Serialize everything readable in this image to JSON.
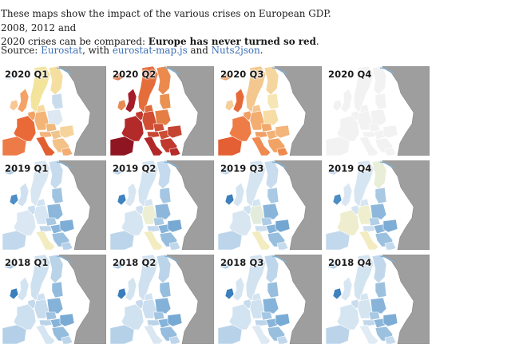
{
  "intro": {
    "line1": "These maps show the impact of the various crises on European GDP. 2008, 2012 and",
    "line2": "2020 crises can be compared: ",
    "bold": "Europe has never turned so red",
    "end": "."
  },
  "source": {
    "label": "Source: ",
    "link1": "Eurostat",
    "sep1": ", with ",
    "link2": "eurostat-map.js",
    "sep2": " and ",
    "link3": "Nuts2json",
    "end": "."
  },
  "colors": {
    "background_land": "#9e9e9e",
    "background_land_stroke": "#7a7a7a",
    "sea": "#ffffff",
    "coast_blue": "#7fb3da",
    "no_data": "#f2f2f2"
  },
  "maps": [
    {
      "label": "2020 Q1",
      "icon": "europe-choropleth-map",
      "fills": {
        "scandi": "#f2e49b",
        "finland": "#f5dfa0",
        "iceland": "#e8f1f8",
        "uk": "#f4a266",
        "ireland": "#f8c792",
        "france": "#e96a38",
        "iberia": "#ec7b47",
        "italy": "#e25f30",
        "benelux": "#f1a265",
        "germany": "#f3b477",
        "poland": "#dde8f3",
        "baltics": "#c9dced",
        "czech": "#f1b87d",
        "balkans": "#f4c187",
        "romania": "#f5d39a",
        "greece": "#f2ad72",
        "austria": "#f4b37a",
        "hungary": "#eec58f",
        "denmark": "#f6d9a1"
      }
    },
    {
      "label": "2020 Q2",
      "icon": "europe-choropleth-map",
      "fills": {
        "scandi": "#e56d3a",
        "finland": "#ec8a4d",
        "iceland": "#e07540",
        "uk": "#a51d2b",
        "ireland": "#e88a52",
        "france": "#b32a2a",
        "iberia": "#8f1523",
        "italy": "#b22727",
        "benelux": "#c23a2e",
        "germany": "#d04e34",
        "poland": "#e47e45",
        "baltics": "#ea9251",
        "czech": "#cf4f36",
        "balkans": "#c1382f",
        "romania": "#c64432",
        "greece": "#b52c2b",
        "austria": "#c84632",
        "hungary": "#cd4d35",
        "denmark": "#e06b3d"
      }
    },
    {
      "label": "2020 Q3",
      "icon": "europe-choropleth-map",
      "fills": {
        "scandi": "#f3c78e",
        "finland": "#f6d69f",
        "iceland": "#f09f62",
        "uk": "#e66a39",
        "ireland": "#f4cf99",
        "france": "#ee7c46",
        "iberia": "#e45f33",
        "italy": "#ef8a50",
        "benelux": "#f29e62",
        "germany": "#f3ad70",
        "poland": "#f7dca6",
        "baltics": "#f6e6b6",
        "czech": "#f2a96c",
        "balkans": "#f1a366",
        "romania": "#f3b57a",
        "greece": "#ee8a4e",
        "austria": "#f0a064",
        "hungary": "#f2b276",
        "denmark": "#f5c690"
      }
    },
    {
      "label": "2020 Q4",
      "icon": "europe-choropleth-map",
      "fills": {
        "scandi": "#f2f2f2",
        "finland": "#f2f2f2",
        "iceland": "#f2f2f2",
        "uk": "#f2f2f2",
        "ireland": "#f2f2f2",
        "france": "#f2f2f2",
        "iberia": "#f2f2f2",
        "italy": "#f2f2f2",
        "benelux": "#f2f2f2",
        "germany": "#f2f2f2",
        "poland": "#f2f2f2",
        "baltics": "#f2f2f2",
        "czech": "#f2f2f2",
        "balkans": "#f2f2f2",
        "romania": "#f2f2f2",
        "greece": "#f2f2f2",
        "austria": "#f2f2f2",
        "hungary": "#f2f2f2",
        "denmark": "#f2f2f2"
      }
    },
    {
      "label": "2019 Q1",
      "icon": "europe-choropleth-map",
      "fills": {
        "scandi": "#d8e6f2",
        "finland": "#c6dbee",
        "iceland": "#a9c9e4",
        "uk": "#cfe1f0",
        "ireland": "#4d8fc6",
        "france": "#dbe8f3",
        "iberia": "#c2d8ec",
        "italy": "#f2ecc0",
        "benelux": "#cadef0",
        "germany": "#d7e6f2",
        "poland": "#8cb7db",
        "baltics": "#9fc4e1",
        "czech": "#a8c9e4",
        "balkans": "#9bc0df",
        "romania": "#7eadd5",
        "greece": "#b6d1e9",
        "austria": "#c0d7eb",
        "hungary": "#88b5da",
        "denmark": "#d1e3f1"
      }
    },
    {
      "label": "2019 Q2",
      "icon": "europe-choropleth-map",
      "fills": {
        "scandi": "#d2e3f1",
        "finland": "#c5daee",
        "iceland": "#b4cfe8",
        "uk": "#d8e6f2",
        "ireland": "#3e82bf",
        "france": "#d6e5f2",
        "iberia": "#bcd5ea",
        "italy": "#f2ecc0",
        "benelux": "#cfe1f0",
        "germany": "#ecefd4",
        "poland": "#8cb7db",
        "baltics": "#a4c6e2",
        "czech": "#abcbe5",
        "balkans": "#96bddd",
        "romania": "#78a9d3",
        "greece": "#c0d7eb",
        "austria": "#c5daee",
        "hungary": "#86b3d9",
        "denmark": "#d5e5f2"
      }
    },
    {
      "label": "2019 Q3",
      "icon": "europe-choropleth-map",
      "fills": {
        "scandi": "#d4e4f1",
        "finland": "#c8dcee",
        "iceland": "#bcd5ea",
        "uk": "#d4e4f1",
        "ireland": "#3d80bd",
        "france": "#d8e6f2",
        "iberia": "#bdd5ea",
        "italy": "#f2ecc0",
        "benelux": "#d0e2f0",
        "germany": "#e3ecdc",
        "poland": "#89b5da",
        "baltics": "#a9c9e4",
        "czech": "#aecce6",
        "balkans": "#98bede",
        "romania": "#73a6d1",
        "greece": "#c6dbee",
        "austria": "#cbdef0",
        "hungary": "#86b3d9",
        "denmark": "#d3e4f1"
      }
    },
    {
      "label": "2019 Q4",
      "icon": "europe-choropleth-map",
      "fills": {
        "scandi": "#d6e5f2",
        "finland": "#e8eed8",
        "iceland": "#c2d8ec",
        "uk": "#dae7f3",
        "ireland": "#4c8ec5",
        "france": "#eeeecf",
        "iberia": "#c2d8ec",
        "italy": "#f2ecc0",
        "benelux": "#d4e4f1",
        "germany": "#efefcd",
        "poland": "#8db8db",
        "baltics": "#a8c8e4",
        "czech": "#b2cfe7",
        "balkans": "#9cc1df",
        "romania": "#7dacd5",
        "greece": "#c3d9ec",
        "austria": "#cfe1f0",
        "hungary": "#8ab6da",
        "denmark": "#d7e6f2"
      }
    },
    {
      "label": "2018 Q1",
      "icon": "europe-choropleth-map",
      "fills": {
        "scandi": "#cde0f0",
        "finland": "#b9d3e9",
        "iceland": "#a2c5e2",
        "uk": "#d2e3f1",
        "ireland": "#3a7ebc",
        "france": "#cde0f0",
        "iberia": "#b3d0e8",
        "italy": "#d6e5f2",
        "benelux": "#c3d9ec",
        "germany": "#c8dcee",
        "poland": "#85b2d8",
        "baltics": "#92bbdd",
        "czech": "#9fc3e1",
        "balkans": "#94bcdd",
        "romania": "#7aabd4",
        "greece": "#bcd5ea",
        "austria": "#b8d2e9",
        "hungary": "#86b3d9",
        "denmark": "#cfe1f0"
      }
    },
    {
      "label": "2018 Q2",
      "icon": "europe-choropleth-map",
      "fills": {
        "scandi": "#cfe1f0",
        "finland": "#bbd4ea",
        "iceland": "#a5c7e3",
        "uk": "#d3e4f1",
        "ireland": "#397dbb",
        "france": "#d0e2f0",
        "iberia": "#b5d1e8",
        "italy": "#d9e7f3",
        "benelux": "#c5daee",
        "germany": "#cbdff0",
        "poland": "#84b1d8",
        "baltics": "#95bdde",
        "czech": "#a2c5e2",
        "balkans": "#96bddd",
        "romania": "#78a9d3",
        "greece": "#bed6eb",
        "austria": "#bad3e9",
        "hungary": "#86b3d9",
        "denmark": "#d1e3f1"
      }
    },
    {
      "label": "2018 Q3",
      "icon": "europe-choropleth-map",
      "fills": {
        "scandi": "#d1e2f0",
        "finland": "#bed6eb",
        "iceland": "#a9c9e4",
        "uk": "#d5e5f2",
        "ireland": "#3c7fbd",
        "france": "#d2e3f1",
        "iberia": "#b8d2e9",
        "italy": "#dde9f3",
        "benelux": "#c7dbee",
        "germany": "#d0e2f0",
        "poland": "#86b3d9",
        "baltics": "#98bede",
        "czech": "#a5c7e3",
        "balkans": "#99bfde",
        "romania": "#7aabd4",
        "greece": "#c1d8ec",
        "austria": "#bdd5ea",
        "hungary": "#88b4d9",
        "denmark": "#d3e4f1"
      }
    },
    {
      "label": "2018 Q4",
      "icon": "europe-choropleth-map",
      "fills": {
        "scandi": "#d3e4f1",
        "finland": "#c1d8ec",
        "iceland": "#aecce6",
        "uk": "#d7e6f2",
        "ireland": "#3f82be",
        "france": "#d5e5f2",
        "iberia": "#bbd4ea",
        "italy": "#e1ebf4",
        "benelux": "#c9ddef",
        "germany": "#d4e4f1",
        "poland": "#88b4d9",
        "baltics": "#9cc1df",
        "czech": "#a8c9e4",
        "balkans": "#9cc1df",
        "romania": "#7dacd5",
        "greece": "#c4daed",
        "austria": "#c0d7eb",
        "hungary": "#8ab6da",
        "denmark": "#d5e5f2"
      }
    }
  ]
}
